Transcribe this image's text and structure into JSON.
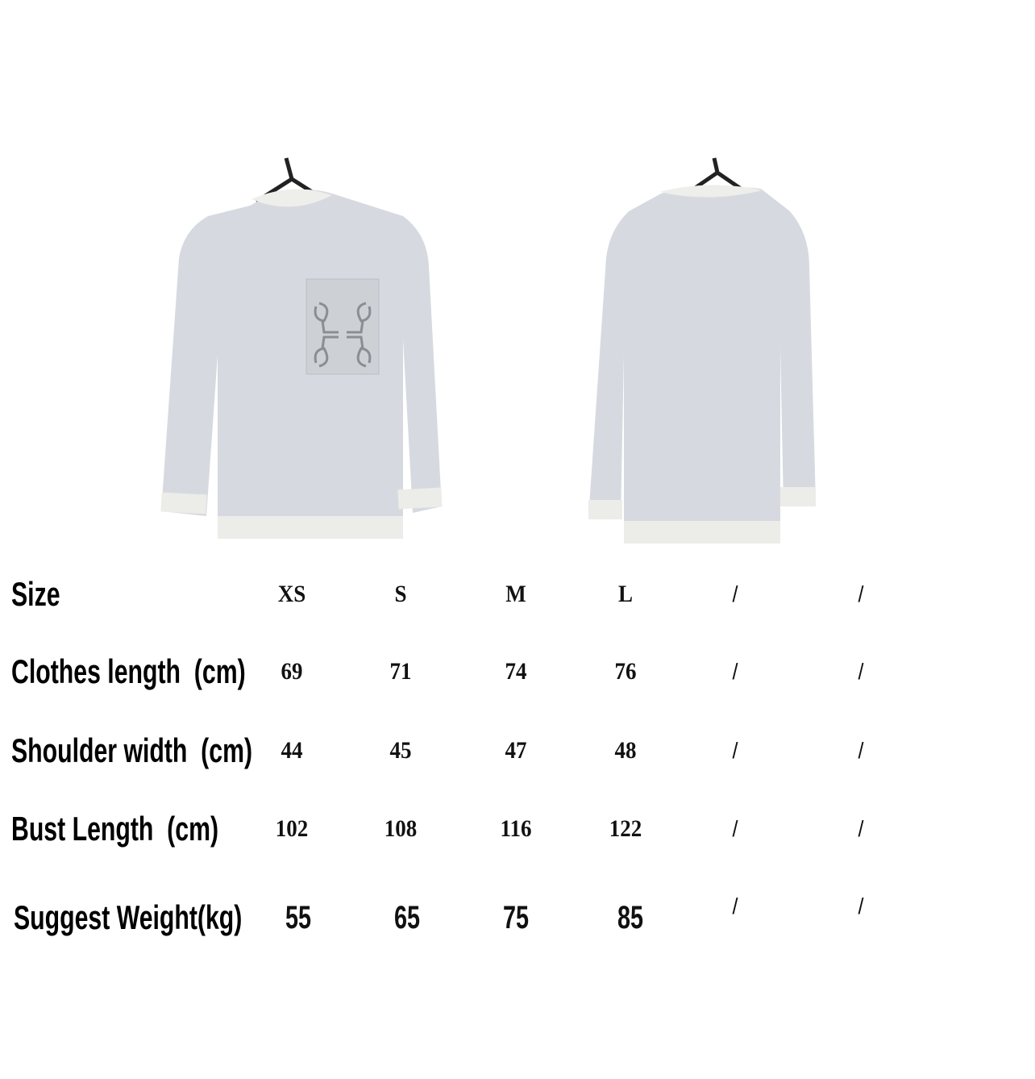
{
  "product": {
    "images": [
      {
        "view": "front",
        "color": "#d6dae0",
        "trim_color": "#eeeeea",
        "pocket_logo": "anagram"
      },
      {
        "view": "back",
        "color": "#d6dae0",
        "trim_color": "#eeeeea"
      }
    ]
  },
  "size_chart": {
    "header": {
      "label": "Size",
      "values": [
        "XS",
        "S",
        "M",
        "L",
        "/",
        "/"
      ]
    },
    "rows": [
      {
        "label": "Clothes length  (cm)",
        "values": [
          "69",
          "71",
          "74",
          "76",
          "/",
          "/"
        ]
      },
      {
        "label": "Shoulder width  (cm)",
        "values": [
          "44",
          "45",
          "47",
          "48",
          "/",
          "/"
        ]
      },
      {
        "label": "Bust Length  (cm)",
        "values": [
          "102",
          "108",
          "116",
          "122",
          "/",
          "/"
        ]
      },
      {
        "label": "Suggest Weight(kg)",
        "values": [
          "55",
          "65",
          "75",
          "85",
          "/",
          "/"
        ]
      }
    ]
  }
}
